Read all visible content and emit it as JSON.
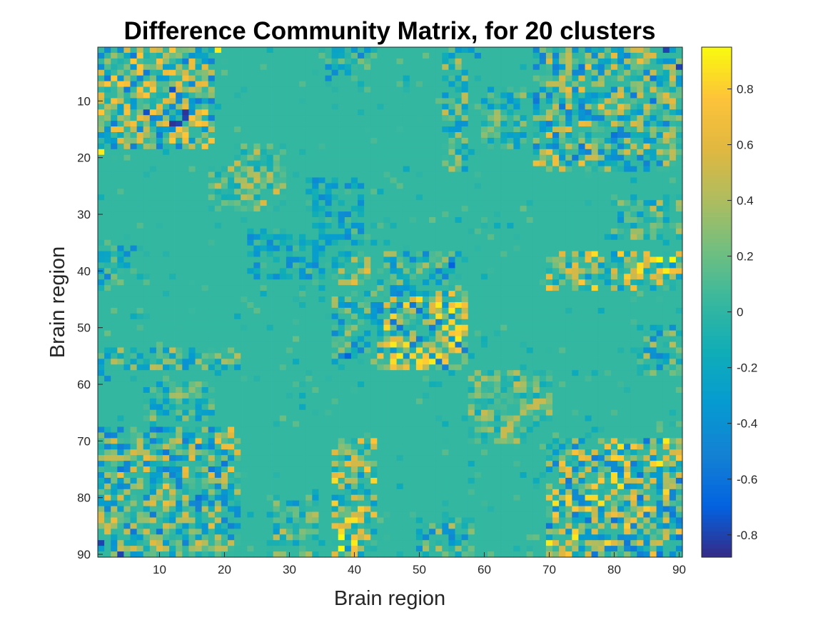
{
  "chart_data": {
    "type": "heatmap",
    "title": "Difference Community Matrix, for 20 clusters",
    "xlabel": "Brain region",
    "ylabel": "Brain region",
    "n_regions": 90,
    "xlim": [
      0.5,
      90.5
    ],
    "ylim": [
      0.5,
      90.5
    ],
    "y_direction": "reverse",
    "x_ticks": [
      10,
      20,
      30,
      40,
      50,
      60,
      70,
      80,
      90
    ],
    "y_ticks": [
      10,
      20,
      30,
      40,
      50,
      60,
      70,
      80,
      90
    ],
    "colormap": "parula",
    "clim": [
      -0.88,
      0.95
    ],
    "colorbar": {
      "location": "right",
      "ticks": [
        -0.8,
        -0.6,
        -0.4,
        -0.2,
        0,
        0.2,
        0.4,
        0.6,
        0.8
      ],
      "tick_labels": [
        "-0.8",
        "-0.6",
        "-0.4",
        "-0.2",
        "0",
        "0.2",
        "0.4",
        "0.6",
        "0.8"
      ]
    },
    "background_value": 0.02,
    "symmetric": true,
    "blocks": [
      {
        "r": [
          1,
          18
        ],
        "c": [
          1,
          18
        ],
        "v": [
          -0.6,
          0.8
        ]
      },
      {
        "r": [
          1,
          4
        ],
        "c": [
          37,
          43
        ],
        "v": [
          -0.5,
          0.3
        ]
      },
      {
        "r": [
          1,
          2
        ],
        "c": [
          56,
          59
        ],
        "v": [
          -0.5,
          0.1
        ]
      },
      {
        "r": [
          1,
          20
        ],
        "c": [
          72,
          90
        ],
        "v": [
          -0.5,
          0.6
        ]
      },
      {
        "r": [
          18,
          29
        ],
        "c": [
          22,
          29
        ],
        "v": [
          -0.2,
          0.6
        ]
      },
      {
        "r": [
          24,
          35
        ],
        "c": [
          33,
          41
        ],
        "v": [
          -0.5,
          0.1
        ]
      },
      {
        "r": [
          36,
          42
        ],
        "c": [
          1,
          8
        ],
        "v": [
          -0.5,
          0.3
        ]
      },
      {
        "r": [
          37,
          41
        ],
        "c": [
          37,
          42
        ],
        "v": [
          -0.3,
          0.7
        ]
      },
      {
        "r": [
          37,
          41
        ],
        "c": [
          72,
          90
        ],
        "v": [
          -0.4,
          0.9
        ]
      },
      {
        "r": [
          44,
          57
        ],
        "c": [
          44,
          57
        ],
        "v": [
          -0.6,
          0.9
        ]
      },
      {
        "r": [
          44,
          56
        ],
        "c": [
          37,
          43
        ],
        "v": [
          -0.5,
          0.4
        ]
      },
      {
        "r": [
          54,
          57
        ],
        "c": [
          1,
          22
        ],
        "v": [
          -0.4,
          0.5
        ]
      },
      {
        "r": [
          58,
          66
        ],
        "c": [
          58,
          70
        ],
        "v": [
          -0.2,
          0.5
        ]
      },
      {
        "r": [
          60,
          66
        ],
        "c": [
          8,
          18
        ],
        "v": [
          -0.4,
          0.4
        ]
      },
      {
        "r": [
          68,
          90
        ],
        "c": [
          1,
          22
        ],
        "v": [
          -0.6,
          0.7
        ]
      },
      {
        "r": [
          70,
          90
        ],
        "c": [
          37,
          43
        ],
        "v": [
          -0.4,
          0.9
        ]
      },
      {
        "r": [
          70,
          90
        ],
        "c": [
          72,
          90
        ],
        "v": [
          -0.6,
          0.9
        ]
      },
      {
        "r": [
          80,
          90
        ],
        "c": [
          27,
          34
        ],
        "v": [
          -0.4,
          0.5
        ]
      },
      {
        "r": [
          84,
          90
        ],
        "c": [
          50,
          58
        ],
        "v": [
          -0.5,
          0.5
        ]
      }
    ],
    "strong_cells": [
      {
        "r": 89,
        "c": 38,
        "v": 0.95
      },
      {
        "r": 88,
        "c": 40,
        "v": 0.9
      },
      {
        "r": 38,
        "c": 87,
        "v": 0.95
      },
      {
        "r": 40,
        "c": 88,
        "v": 0.9
      },
      {
        "r": 56,
        "c": 52,
        "v": 0.9
      },
      {
        "r": 53,
        "c": 55,
        "v": 0.85
      },
      {
        "r": 9,
        "c": 8,
        "v": 0.75
      },
      {
        "r": 13,
        "c": 14,
        "v": -0.8
      },
      {
        "r": 12,
        "c": 8,
        "v": -0.75
      },
      {
        "r": 14,
        "c": 12,
        "v": -0.85
      },
      {
        "r": 1,
        "c": 19,
        "v": 0.9
      },
      {
        "r": 90,
        "c": 4,
        "v": -0.8
      },
      {
        "r": 1,
        "c": 88,
        "v": -0.8
      },
      {
        "r": 39,
        "c": 55,
        "v": -0.7
      }
    ]
  }
}
